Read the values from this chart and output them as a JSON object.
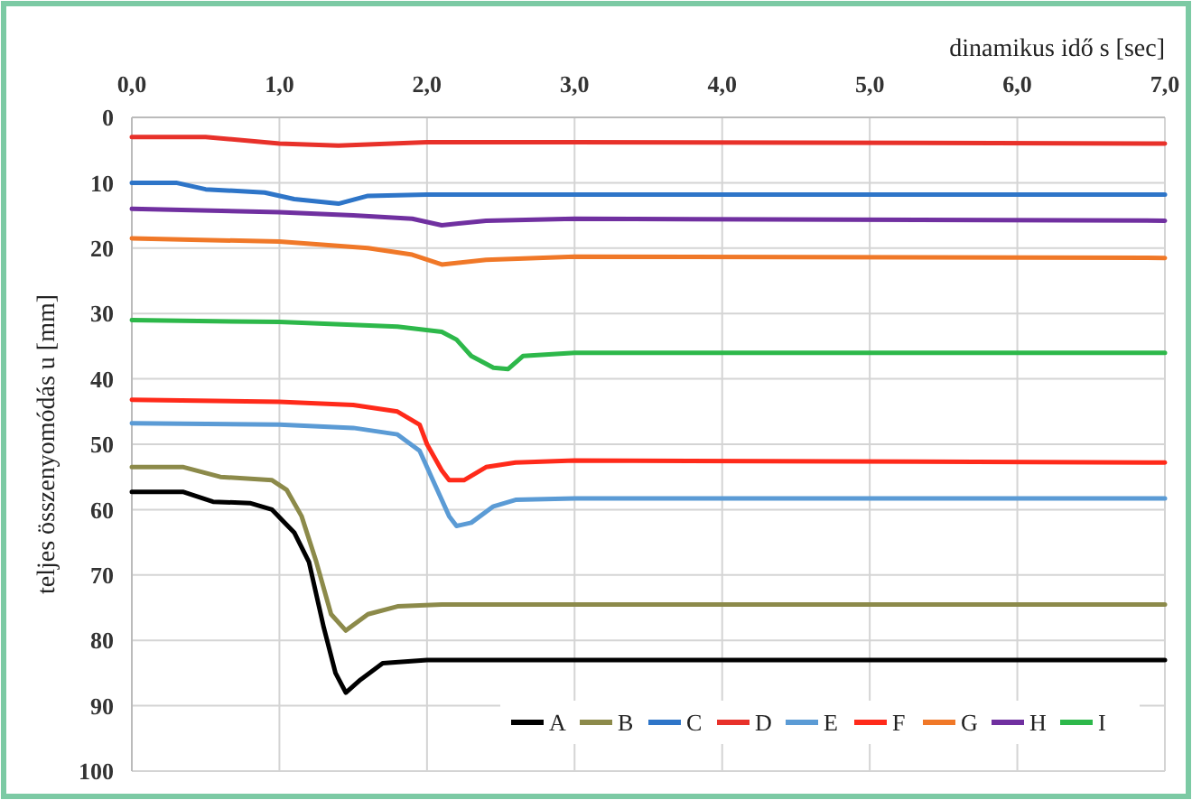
{
  "chart_data": {
    "type": "line",
    "xlabel": "dinamikus idő  s  [sec]",
    "ylabel": "teljes összenyomódás  u  [mm]",
    "xlim": [
      0,
      7
    ],
    "xticks": [
      {
        "value": 0,
        "label": "0,0"
      },
      {
        "value": 1,
        "label": "1,0"
      },
      {
        "value": 2,
        "label": "2,0"
      },
      {
        "value": 3,
        "label": "3,0"
      },
      {
        "value": 4,
        "label": "4,0"
      },
      {
        "value": 5,
        "label": "5,0"
      },
      {
        "value": 6,
        "label": "6,0"
      },
      {
        "value": 7,
        "label": "7,0"
      }
    ],
    "ylim": [
      100,
      0
    ],
    "yticks": [
      0,
      10,
      20,
      30,
      40,
      50,
      60,
      70,
      80,
      90,
      100
    ],
    "grid": true,
    "legend": "bottom right",
    "marker": "none",
    "line_style": "solid",
    "series": [
      {
        "name": "A",
        "color": "#000000",
        "x": [
          0,
          0.35,
          0.55,
          0.8,
          0.95,
          1.1,
          1.2,
          1.3,
          1.38,
          1.45,
          1.55,
          1.7,
          2,
          7
        ],
        "values": [
          57.3,
          57.3,
          58.8,
          59,
          60,
          63.5,
          68,
          78,
          85,
          88,
          86,
          83.5,
          83,
          83
        ]
      },
      {
        "name": "B",
        "color": "#8c8a4a",
        "x": [
          0,
          0.35,
          0.6,
          0.95,
          1.05,
          1.15,
          1.25,
          1.35,
          1.45,
          1.6,
          1.8,
          2.1,
          7
        ],
        "values": [
          53.5,
          53.5,
          55,
          55.5,
          57,
          61,
          68,
          76,
          78.5,
          76,
          74.8,
          74.5,
          74.5
        ]
      },
      {
        "name": "C",
        "color": "#2e75c8",
        "x": [
          0,
          0.3,
          0.5,
          0.9,
          1.1,
          1.4,
          1.6,
          2,
          7
        ],
        "values": [
          10,
          10,
          11,
          11.5,
          12.5,
          13.2,
          12,
          11.8,
          11.8
        ]
      },
      {
        "name": "D",
        "color": "#e8312a",
        "x": [
          0,
          0.5,
          1,
          1.4,
          2,
          3,
          7
        ],
        "values": [
          3,
          3,
          4,
          4.3,
          3.8,
          3.8,
          4
        ]
      },
      {
        "name": "E",
        "color": "#5b9bd5",
        "x": [
          0,
          1,
          1.5,
          1.8,
          1.95,
          2.05,
          2.15,
          2.2,
          2.3,
          2.45,
          2.6,
          3,
          7
        ],
        "values": [
          46.8,
          47,
          47.5,
          48.5,
          51,
          56,
          61,
          62.5,
          62,
          59.5,
          58.5,
          58.3,
          58.3
        ]
      },
      {
        "name": "F",
        "color": "#ff2a1a",
        "x": [
          0,
          1,
          1.5,
          1.8,
          1.95,
          2,
          2.1,
          2.15,
          2.25,
          2.4,
          2.6,
          3,
          7
        ],
        "values": [
          43.2,
          43.5,
          44,
          45,
          47,
          50,
          54,
          55.5,
          55.5,
          53.5,
          52.8,
          52.5,
          52.8
        ]
      },
      {
        "name": "G",
        "color": "#f07828",
        "x": [
          0,
          1,
          1.6,
          1.9,
          2.1,
          2.4,
          3,
          7
        ],
        "values": [
          18.5,
          19,
          20,
          21,
          22.5,
          21.8,
          21.3,
          21.5
        ]
      },
      {
        "name": "H",
        "color": "#7030a0",
        "x": [
          0,
          1,
          1.5,
          1.9,
          2.1,
          2.4,
          3,
          7
        ],
        "values": [
          14,
          14.5,
          15,
          15.5,
          16.5,
          15.8,
          15.5,
          15.8
        ]
      },
      {
        "name": "I",
        "color": "#2db84a",
        "x": [
          0,
          1,
          1.8,
          2.1,
          2.2,
          2.3,
          2.45,
          2.55,
          2.65,
          3,
          7
        ],
        "values": [
          31,
          31.3,
          32,
          32.8,
          34,
          36.5,
          38.3,
          38.5,
          36.5,
          36,
          36
        ]
      }
    ]
  }
}
